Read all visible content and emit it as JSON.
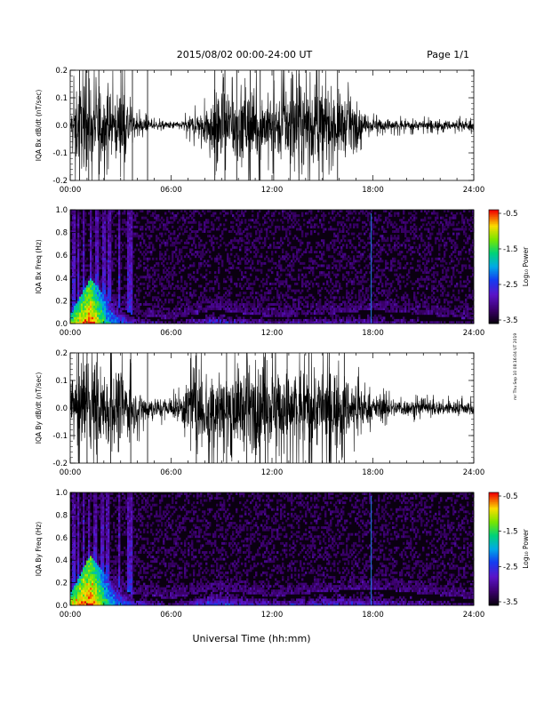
{
  "header": {
    "title": "2015/08/02  00:00-24:00 UT",
    "page": "Page 1/1"
  },
  "footer": {
    "xlabel": "Universal Time (hh:mm)",
    "side_stamp": "mr Thu Sep 10 08:16:04 UT 2019"
  },
  "time_ticks": [
    "00:00",
    "06:00",
    "12:00",
    "18:00",
    "24:00"
  ],
  "colorbar": {
    "label": "Log₁₀ Power",
    "ticks": [
      "-0.5",
      "-1.5",
      "-2.5",
      "-3.5"
    ],
    "range": [
      -3.5,
      -0.5
    ]
  },
  "colors": {
    "background": "#ffffff",
    "trace": "#000000",
    "spectrogram_floor": "#0a0010"
  },
  "chart_data": [
    {
      "type": "line",
      "name": "bx_dbdt",
      "ylabel": "IQA Bx dB/dt (nT/sec)",
      "xlim": [
        0,
        24
      ],
      "ylim": [
        -0.2,
        0.2
      ],
      "yticks": [
        "0.2",
        "0.1",
        "0.0",
        "-0.1",
        "-0.2"
      ],
      "ytick_values": [
        0.2,
        0.1,
        0.0,
        -0.1,
        -0.2
      ],
      "envelope": [
        {
          "t": 0.0,
          "a": 0.03
        },
        {
          "t": 0.3,
          "a": 0.2
        },
        {
          "t": 1.0,
          "a": 0.2
        },
        {
          "t": 2.0,
          "a": 0.2
        },
        {
          "t": 2.6,
          "a": 0.14
        },
        {
          "t": 3.2,
          "a": 0.2
        },
        {
          "t": 3.8,
          "a": 0.05
        },
        {
          "t": 5.0,
          "a": 0.02
        },
        {
          "t": 6.5,
          "a": 0.02
        },
        {
          "t": 7.3,
          "a": 0.05
        },
        {
          "t": 8.0,
          "a": 0.1
        },
        {
          "t": 9.0,
          "a": 0.2
        },
        {
          "t": 11.0,
          "a": 0.17
        },
        {
          "t": 12.0,
          "a": 0.14
        },
        {
          "t": 13.0,
          "a": 0.2
        },
        {
          "t": 15.0,
          "a": 0.2
        },
        {
          "t": 16.8,
          "a": 0.13
        },
        {
          "t": 17.5,
          "a": 0.04
        },
        {
          "t": 20.0,
          "a": 0.025
        },
        {
          "t": 24.0,
          "a": 0.025
        }
      ],
      "spikes": [
        0.55,
        1.1,
        1.7,
        3.7,
        4.6,
        8.6,
        9.2,
        9.9,
        10.7,
        11.3,
        12.1,
        13.6,
        14.8,
        15.9
      ]
    },
    {
      "type": "heatmap",
      "name": "bx_freq",
      "ylabel": "IQA Bx Freq (Hz)",
      "xlim": [
        0,
        24
      ],
      "ylim": [
        0.0,
        1.0
      ],
      "yticks": [
        "1.0",
        "0.8",
        "0.6",
        "0.4",
        "0.2",
        "0.0"
      ],
      "ytick_values": [
        1.0,
        0.8,
        0.6,
        0.4,
        0.2,
        0.0
      ],
      "bursts": [
        0.2,
        0.5,
        0.8,
        1.2,
        1.6,
        2.0,
        2.3,
        2.9,
        3.5,
        3.6
      ],
      "activity": [
        {
          "t": 0.0,
          "h": 0.08,
          "p": -1.2
        },
        {
          "t": 1.2,
          "h": 0.4,
          "p": -0.6
        },
        {
          "t": 2.5,
          "h": 0.18,
          "p": -2.0
        },
        {
          "t": 3.7,
          "h": 0.08,
          "p": -2.6
        },
        {
          "t": 6.0,
          "h": 0.04,
          "p": -3.0
        },
        {
          "t": 8.5,
          "h": 0.12,
          "p": -2.6
        },
        {
          "t": 12.0,
          "h": 0.06,
          "p": -2.8
        },
        {
          "t": 15.0,
          "h": 0.08,
          "p": -2.7
        },
        {
          "t": 18.0,
          "h": 0.12,
          "p": -2.8
        },
        {
          "t": 24.0,
          "h": 0.04,
          "p": -3.1
        }
      ],
      "line_marker_t": 17.9
    },
    {
      "type": "line",
      "name": "by_dbdt",
      "ylabel": "IQA By dB/dt (nT/sec)",
      "xlim": [
        0,
        24
      ],
      "ylim": [
        -0.2,
        0.2
      ],
      "yticks": [
        "0.2",
        "0.1",
        "0.0",
        "-0.1",
        "-0.2"
      ],
      "ytick_values": [
        0.2,
        0.1,
        0.0,
        -0.1,
        -0.2
      ],
      "envelope": [
        {
          "t": 0.0,
          "a": 0.04
        },
        {
          "t": 0.3,
          "a": 0.2
        },
        {
          "t": 2.0,
          "a": 0.2
        },
        {
          "t": 3.0,
          "a": 0.2
        },
        {
          "t": 3.8,
          "a": 0.1
        },
        {
          "t": 5.0,
          "a": 0.05
        },
        {
          "t": 6.5,
          "a": 0.06
        },
        {
          "t": 7.3,
          "a": 0.2
        },
        {
          "t": 9.0,
          "a": 0.2
        },
        {
          "t": 11.0,
          "a": 0.2
        },
        {
          "t": 12.0,
          "a": 0.2
        },
        {
          "t": 13.5,
          "a": 0.2
        },
        {
          "t": 16.0,
          "a": 0.19
        },
        {
          "t": 17.0,
          "a": 0.12
        },
        {
          "t": 18.0,
          "a": 0.06
        },
        {
          "t": 20.0,
          "a": 0.04
        },
        {
          "t": 24.0,
          "a": 0.035
        }
      ],
      "spikes": [
        0.5,
        1.0,
        1.6,
        2.4,
        3.6,
        4.6,
        7.5,
        9.3,
        10.5,
        11.6,
        12.9,
        14.2,
        15.4,
        16.3
      ]
    },
    {
      "type": "heatmap",
      "name": "by_freq",
      "ylabel": "IQA By Freq (Hz)",
      "xlim": [
        0,
        24
      ],
      "ylim": [
        0.0,
        1.0
      ],
      "yticks": [
        "1.0",
        "0.8",
        "0.6",
        "0.4",
        "0.2",
        "0.0"
      ],
      "ytick_values": [
        1.0,
        0.8,
        0.6,
        0.4,
        0.2,
        0.0
      ],
      "bursts": [
        0.2,
        0.5,
        0.8,
        1.1,
        1.5,
        1.9,
        2.2,
        2.9,
        3.5,
        3.6
      ],
      "activity": [
        {
          "t": 0.0,
          "h": 0.1,
          "p": -1.0
        },
        {
          "t": 1.2,
          "h": 0.45,
          "p": -0.6
        },
        {
          "t": 2.5,
          "h": 0.2,
          "p": -1.9
        },
        {
          "t": 3.7,
          "h": 0.1,
          "p": -2.5
        },
        {
          "t": 6.0,
          "h": 0.06,
          "p": -2.9
        },
        {
          "t": 8.5,
          "h": 0.14,
          "p": -2.4
        },
        {
          "t": 12.0,
          "h": 0.08,
          "p": -2.7
        },
        {
          "t": 15.0,
          "h": 0.12,
          "p": -2.6
        },
        {
          "t": 18.0,
          "h": 0.15,
          "p": -2.7
        },
        {
          "t": 24.0,
          "h": 0.06,
          "p": -3.0
        }
      ],
      "line_marker_t": 17.9
    }
  ]
}
